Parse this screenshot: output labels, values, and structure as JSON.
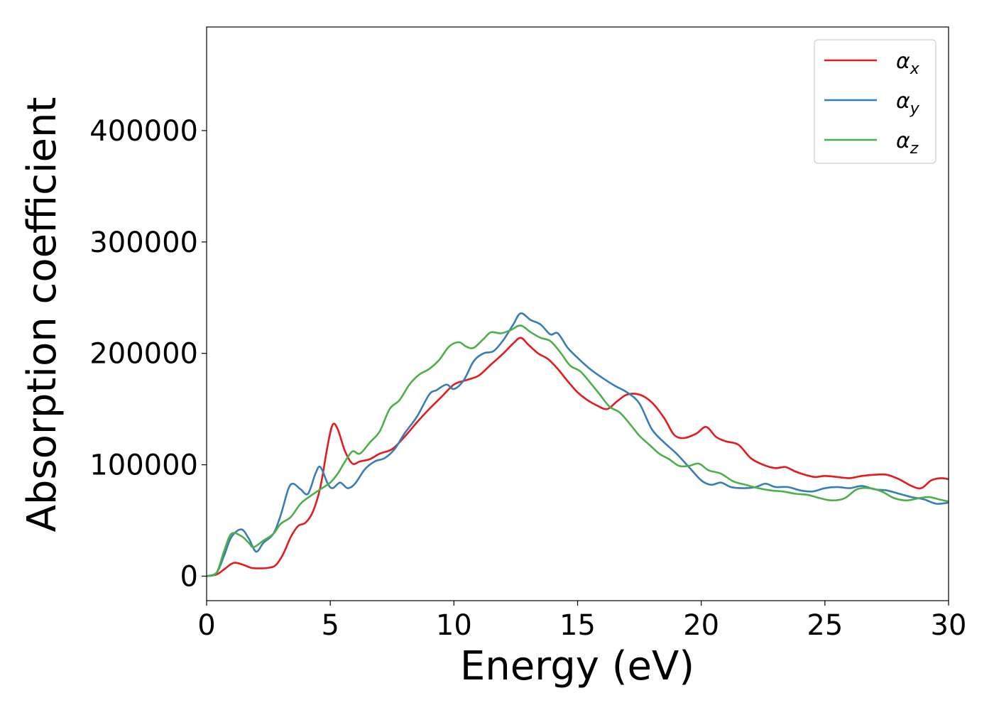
{
  "chart_data": {
    "type": "line",
    "title": "",
    "xlabel": "Energy (eV)",
    "ylabel": "Absorption coefficient",
    "xlim": [
      0,
      30
    ],
    "ylim": [
      -22000,
      493000
    ],
    "xticks": [
      0,
      5,
      10,
      15,
      20,
      25,
      30
    ],
    "yticks": [
      0,
      100000,
      200000,
      300000,
      400000
    ],
    "xtick_labels": [
      "0",
      "5",
      "10",
      "15",
      "20",
      "25",
      "30"
    ],
    "ytick_labels": [
      "0",
      "100000",
      "200000",
      "300000",
      "400000"
    ],
    "grid": false,
    "legend_position": "top-right",
    "series": [
      {
        "name": "αx",
        "legend_base": "α",
        "legend_sub": "x",
        "color": "#e41a1c",
        "points": [
          [
            0,
            0
          ],
          [
            0.4,
            1500
          ],
          [
            0.7,
            6000
          ],
          [
            1.0,
            11000
          ],
          [
            1.2,
            12000
          ],
          [
            1.5,
            10000
          ],
          [
            1.8,
            7500
          ],
          [
            2.1,
            7000
          ],
          [
            2.5,
            7500
          ],
          [
            2.8,
            10000
          ],
          [
            3.1,
            20000
          ],
          [
            3.4,
            35000
          ],
          [
            3.7,
            45000
          ],
          [
            4.0,
            48000
          ],
          [
            4.3,
            58000
          ],
          [
            4.6,
            80000
          ],
          [
            4.9,
            118000
          ],
          [
            5.1,
            136000
          ],
          [
            5.3,
            132000
          ],
          [
            5.6,
            112000
          ],
          [
            5.9,
            101000
          ],
          [
            6.2,
            103000
          ],
          [
            6.6,
            105000
          ],
          [
            7.0,
            110000
          ],
          [
            7.5,
            114000
          ],
          [
            8.0,
            125000
          ],
          [
            8.5,
            138000
          ],
          [
            9.0,
            150000
          ],
          [
            9.5,
            161000
          ],
          [
            10.0,
            172000
          ],
          [
            10.5,
            176000
          ],
          [
            11.0,
            180000
          ],
          [
            11.5,
            190000
          ],
          [
            12.0,
            200000
          ],
          [
            12.4,
            209000
          ],
          [
            12.7,
            214000
          ],
          [
            13.0,
            208000
          ],
          [
            13.4,
            200000
          ],
          [
            13.8,
            195000
          ],
          [
            14.2,
            186000
          ],
          [
            14.6,
            175000
          ],
          [
            15.0,
            165000
          ],
          [
            15.4,
            158000
          ],
          [
            15.8,
            153000
          ],
          [
            16.2,
            150000
          ],
          [
            16.6,
            157000
          ],
          [
            17.0,
            163000
          ],
          [
            17.5,
            163000
          ],
          [
            18.0,
            156000
          ],
          [
            18.5,
            142000
          ],
          [
            18.9,
            127000
          ],
          [
            19.3,
            124000
          ],
          [
            19.8,
            128000
          ],
          [
            20.2,
            134000
          ],
          [
            20.6,
            125000
          ],
          [
            21.0,
            121000
          ],
          [
            21.5,
            118000
          ],
          [
            22.0,
            106000
          ],
          [
            22.5,
            100000
          ],
          [
            23.0,
            97000
          ],
          [
            23.4,
            98000
          ],
          [
            23.8,
            94000
          ],
          [
            24.2,
            91000
          ],
          [
            24.6,
            89000
          ],
          [
            25.0,
            90000
          ],
          [
            25.5,
            89000
          ],
          [
            26.0,
            88000
          ],
          [
            26.5,
            90000
          ],
          [
            27.0,
            91000
          ],
          [
            27.5,
            91000
          ],
          [
            28.0,
            87000
          ],
          [
            28.5,
            81000
          ],
          [
            28.9,
            79000
          ],
          [
            29.3,
            86000
          ],
          [
            29.7,
            88000
          ],
          [
            30.0,
            87000
          ]
        ]
      },
      {
        "name": "αy",
        "legend_base": "α",
        "legend_sub": "y",
        "color": "#377eb8",
        "points": [
          [
            0,
            0
          ],
          [
            0.4,
            3000
          ],
          [
            0.7,
            18000
          ],
          [
            1.0,
            35000
          ],
          [
            1.4,
            42000
          ],
          [
            1.7,
            34000
          ],
          [
            2.0,
            22000
          ],
          [
            2.3,
            30000
          ],
          [
            2.7,
            38000
          ],
          [
            3.0,
            55000
          ],
          [
            3.3,
            78000
          ],
          [
            3.5,
            83000
          ],
          [
            3.8,
            78000
          ],
          [
            4.1,
            74000
          ],
          [
            4.4,
            92000
          ],
          [
            4.6,
            98000
          ],
          [
            4.9,
            83000
          ],
          [
            5.1,
            79000
          ],
          [
            5.4,
            84000
          ],
          [
            5.7,
            79000
          ],
          [
            6.0,
            83000
          ],
          [
            6.4,
            96000
          ],
          [
            6.8,
            103000
          ],
          [
            7.2,
            106000
          ],
          [
            7.6,
            114000
          ],
          [
            8.0,
            128000
          ],
          [
            8.5,
            143000
          ],
          [
            9.0,
            163000
          ],
          [
            9.3,
            167000
          ],
          [
            9.7,
            172000
          ],
          [
            10.0,
            168000
          ],
          [
            10.4,
            176000
          ],
          [
            10.8,
            193000
          ],
          [
            11.2,
            200000
          ],
          [
            11.6,
            202000
          ],
          [
            12.0,
            212000
          ],
          [
            12.4,
            226000
          ],
          [
            12.7,
            236000
          ],
          [
            13.1,
            230000
          ],
          [
            13.5,
            226000
          ],
          [
            13.9,
            217000
          ],
          [
            14.2,
            218000
          ],
          [
            14.6,
            205000
          ],
          [
            15.0,
            196000
          ],
          [
            15.5,
            186000
          ],
          [
            16.0,
            178000
          ],
          [
            16.5,
            171000
          ],
          [
            17.0,
            165000
          ],
          [
            17.5,
            155000
          ],
          [
            18.0,
            132000
          ],
          [
            18.5,
            120000
          ],
          [
            19.0,
            110000
          ],
          [
            19.5,
            98000
          ],
          [
            20.0,
            86000
          ],
          [
            20.4,
            82000
          ],
          [
            20.8,
            84000
          ],
          [
            21.2,
            80000
          ],
          [
            21.7,
            79000
          ],
          [
            22.2,
            80000
          ],
          [
            22.6,
            83000
          ],
          [
            23.0,
            80000
          ],
          [
            23.5,
            80000
          ],
          [
            24.0,
            77000
          ],
          [
            24.5,
            76000
          ],
          [
            25.0,
            79000
          ],
          [
            25.5,
            80000
          ],
          [
            26.0,
            79000
          ],
          [
            26.5,
            81000
          ],
          [
            27.0,
            78000
          ],
          [
            27.5,
            77000
          ],
          [
            28.0,
            74000
          ],
          [
            28.5,
            71000
          ],
          [
            29.0,
            69000
          ],
          [
            29.5,
            65000
          ],
          [
            30.0,
            66000
          ]
        ]
      },
      {
        "name": "αz",
        "legend_base": "α",
        "legend_sub": "z",
        "color": "#4daf4a",
        "points": [
          [
            0,
            0
          ],
          [
            0.4,
            3000
          ],
          [
            0.7,
            22000
          ],
          [
            1.0,
            38000
          ],
          [
            1.4,
            36000
          ],
          [
            1.7,
            30000
          ],
          [
            1.9,
            26000
          ],
          [
            2.3,
            32000
          ],
          [
            2.7,
            38000
          ],
          [
            3.0,
            47000
          ],
          [
            3.4,
            53000
          ],
          [
            3.8,
            65000
          ],
          [
            4.2,
            72000
          ],
          [
            4.6,
            78000
          ],
          [
            5.0,
            84000
          ],
          [
            5.3,
            92000
          ],
          [
            5.6,
            103000
          ],
          [
            5.9,
            112000
          ],
          [
            6.2,
            110000
          ],
          [
            6.6,
            120000
          ],
          [
            7.0,
            130000
          ],
          [
            7.4,
            150000
          ],
          [
            7.8,
            158000
          ],
          [
            8.2,
            172000
          ],
          [
            8.6,
            181000
          ],
          [
            9.0,
            186000
          ],
          [
            9.4,
            194000
          ],
          [
            9.8,
            206000
          ],
          [
            10.2,
            210000
          ],
          [
            10.5,
            206000
          ],
          [
            10.8,
            205000
          ],
          [
            11.2,
            213000
          ],
          [
            11.5,
            219000
          ],
          [
            11.9,
            218000
          ],
          [
            12.3,
            221000
          ],
          [
            12.7,
            225000
          ],
          [
            13.1,
            219000
          ],
          [
            13.5,
            214000
          ],
          [
            13.9,
            211000
          ],
          [
            14.3,
            201000
          ],
          [
            14.7,
            189000
          ],
          [
            15.1,
            184000
          ],
          [
            15.5,
            174000
          ],
          [
            15.9,
            163000
          ],
          [
            16.3,
            152000
          ],
          [
            16.7,
            147000
          ],
          [
            17.1,
            137000
          ],
          [
            17.5,
            126000
          ],
          [
            17.9,
            118000
          ],
          [
            18.3,
            110000
          ],
          [
            18.7,
            105000
          ],
          [
            19.1,
            99000
          ],
          [
            19.5,
            99000
          ],
          [
            19.9,
            101000
          ],
          [
            20.3,
            95000
          ],
          [
            20.8,
            92000
          ],
          [
            21.3,
            85000
          ],
          [
            21.8,
            82000
          ],
          [
            22.3,
            79000
          ],
          [
            22.8,
            77000
          ],
          [
            23.3,
            76000
          ],
          [
            23.8,
            74000
          ],
          [
            24.3,
            73000
          ],
          [
            24.8,
            70000
          ],
          [
            25.3,
            68000
          ],
          [
            25.8,
            70000
          ],
          [
            26.3,
            78000
          ],
          [
            26.8,
            79000
          ],
          [
            27.3,
            76000
          ],
          [
            27.8,
            70000
          ],
          [
            28.3,
            68000
          ],
          [
            28.8,
            70000
          ],
          [
            29.2,
            71000
          ],
          [
            29.6,
            69000
          ],
          [
            30.0,
            67000
          ]
        ]
      }
    ]
  }
}
